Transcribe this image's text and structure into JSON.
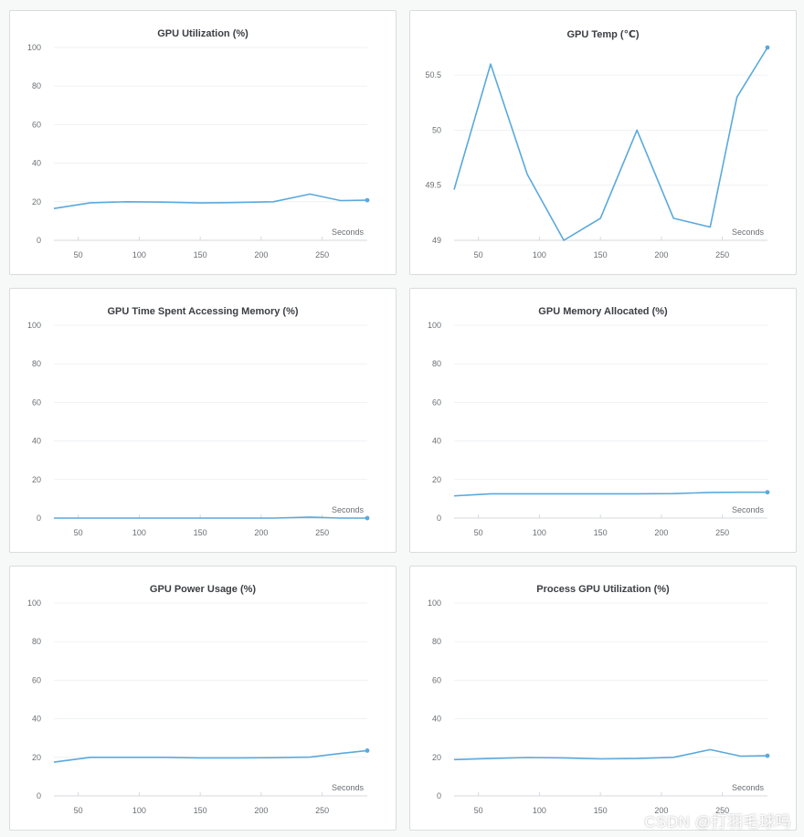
{
  "series_color": "#5aa9dc",
  "x_axis_label": "Seconds",
  "watermark": "CSDN @打羽毛球吗",
  "chart_data": [
    {
      "type": "line",
      "title": "GPU Utilization (%)",
      "x": [
        30,
        60,
        90,
        120,
        150,
        180,
        210,
        240,
        265,
        287
      ],
      "values": [
        16.5,
        19.5,
        20,
        19.8,
        19.4,
        19.6,
        20,
        24,
        20.6,
        20.8
      ],
      "ylim": [
        0,
        100
      ],
      "yticks": [
        "0",
        "20",
        "40",
        "60",
        "80",
        "100"
      ],
      "xlim": [
        30,
        287
      ],
      "xticks": [
        "50",
        "100",
        "150",
        "200",
        "250"
      ],
      "xlabel": "Seconds"
    },
    {
      "type": "line",
      "title": "GPU Temp (℃)",
      "x": [
        30,
        60,
        90,
        120,
        150,
        180,
        210,
        240,
        262,
        287
      ],
      "values": [
        49.46,
        50.6,
        49.6,
        49,
        49.2,
        50,
        49.2,
        49.12,
        50.3,
        50.75
      ],
      "ylim": [
        49,
        50.75
      ],
      "yticks": [
        "49",
        "49.5",
        "50",
        "50.5"
      ],
      "xlim": [
        30,
        287
      ],
      "xticks": [
        "50",
        "100",
        "150",
        "200",
        "250"
      ],
      "xlabel": "Seconds"
    },
    {
      "type": "line",
      "title": "GPU Time Spent Accessing Memory (%)",
      "x": [
        30,
        60,
        90,
        120,
        150,
        180,
        210,
        240,
        265,
        287
      ],
      "values": [
        0,
        0,
        0,
        0,
        0,
        0,
        0,
        0.5,
        0,
        0
      ],
      "ylim": [
        0,
        100
      ],
      "yticks": [
        "0",
        "20",
        "40",
        "60",
        "80",
        "100"
      ],
      "xlim": [
        30,
        287
      ],
      "xticks": [
        "50",
        "100",
        "150",
        "200",
        "250"
      ],
      "xlabel": "Seconds"
    },
    {
      "type": "line",
      "title": "GPU Memory Allocated (%)",
      "x": [
        30,
        60,
        90,
        120,
        150,
        180,
        210,
        240,
        265,
        287
      ],
      "values": [
        11.5,
        12.6,
        12.6,
        12.6,
        12.6,
        12.6,
        12.7,
        13.3,
        13.4,
        13.4
      ],
      "ylim": [
        0,
        100
      ],
      "yticks": [
        "0",
        "20",
        "40",
        "60",
        "80",
        "100"
      ],
      "xlim": [
        30,
        287
      ],
      "xticks": [
        "50",
        "100",
        "150",
        "200",
        "250"
      ],
      "xlabel": "Seconds"
    },
    {
      "type": "line",
      "title": "GPU Power Usage (%)",
      "x": [
        30,
        60,
        90,
        120,
        150,
        180,
        210,
        240,
        265,
        287
      ],
      "values": [
        17.5,
        20,
        20,
        20,
        19.7,
        19.7,
        19.8,
        20.1,
        22,
        23.5
      ],
      "ylim": [
        0,
        100
      ],
      "yticks": [
        "0",
        "20",
        "40",
        "60",
        "80",
        "100"
      ],
      "xlim": [
        30,
        287
      ],
      "xticks": [
        "50",
        "100",
        "150",
        "200",
        "250"
      ],
      "xlabel": "Seconds"
    },
    {
      "type": "line",
      "title": "Process GPU Utilization (%)",
      "x": [
        30,
        60,
        90,
        120,
        150,
        180,
        210,
        240,
        265,
        287
      ],
      "values": [
        18.8,
        19.4,
        19.9,
        19.7,
        19.2,
        19.4,
        20,
        24,
        20.6,
        20.8
      ],
      "ylim": [
        0,
        100
      ],
      "yticks": [
        "0",
        "20",
        "40",
        "60",
        "80",
        "100"
      ],
      "xlim": [
        30,
        287
      ],
      "xticks": [
        "50",
        "100",
        "150",
        "200",
        "250"
      ],
      "xlabel": "Seconds"
    }
  ]
}
